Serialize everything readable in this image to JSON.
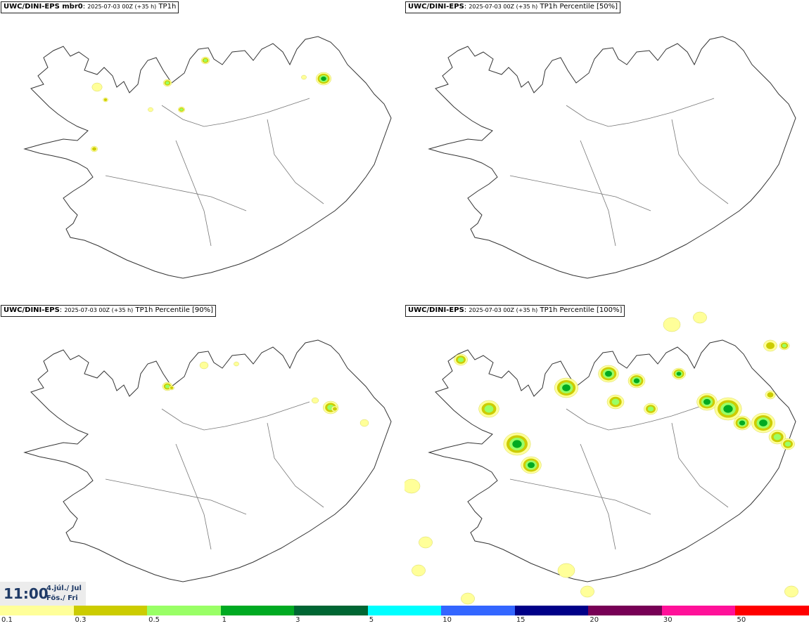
{
  "panels": [
    {
      "id": "mbr0",
      "model": "UWC/DINI-EPS mbr0",
      "run": "2025-07-03 00Z (+35 h)",
      "field": "TP1h"
    },
    {
      "id": "p50",
      "model": "UWC/DINI-EPS",
      "run": "2025-07-03 00Z (+35 h)",
      "field": "TP1h Percentile [50%]"
    },
    {
      "id": "p90",
      "model": "UWC/DINI-EPS",
      "run": "2025-07-03 00Z (+35 h)",
      "field": "TP1h Percentile [90%]"
    },
    {
      "id": "p100",
      "model": "UWC/DINI-EPS",
      "run": "2025-07-03 00Z (+35 h)",
      "field": "TP1h Percentile [100%]"
    }
  ],
  "valid_time": {
    "time": "11:00",
    "date_line1": "4.júl./ Jul",
    "date_line2": "Fös./ Fri"
  },
  "legend": {
    "labels": [
      "0.1",
      "0.3",
      "0.5",
      "1",
      "3",
      "5",
      "10",
      "15",
      "20",
      "30",
      "50"
    ],
    "colors": [
      "#ffff99",
      "#cccc00",
      "#99ff66",
      "#00aa22",
      "#006633",
      "#00ffff",
      "#3366ff",
      "#000088",
      "#770055",
      "#ff1199",
      "#ff0000"
    ]
  }
}
